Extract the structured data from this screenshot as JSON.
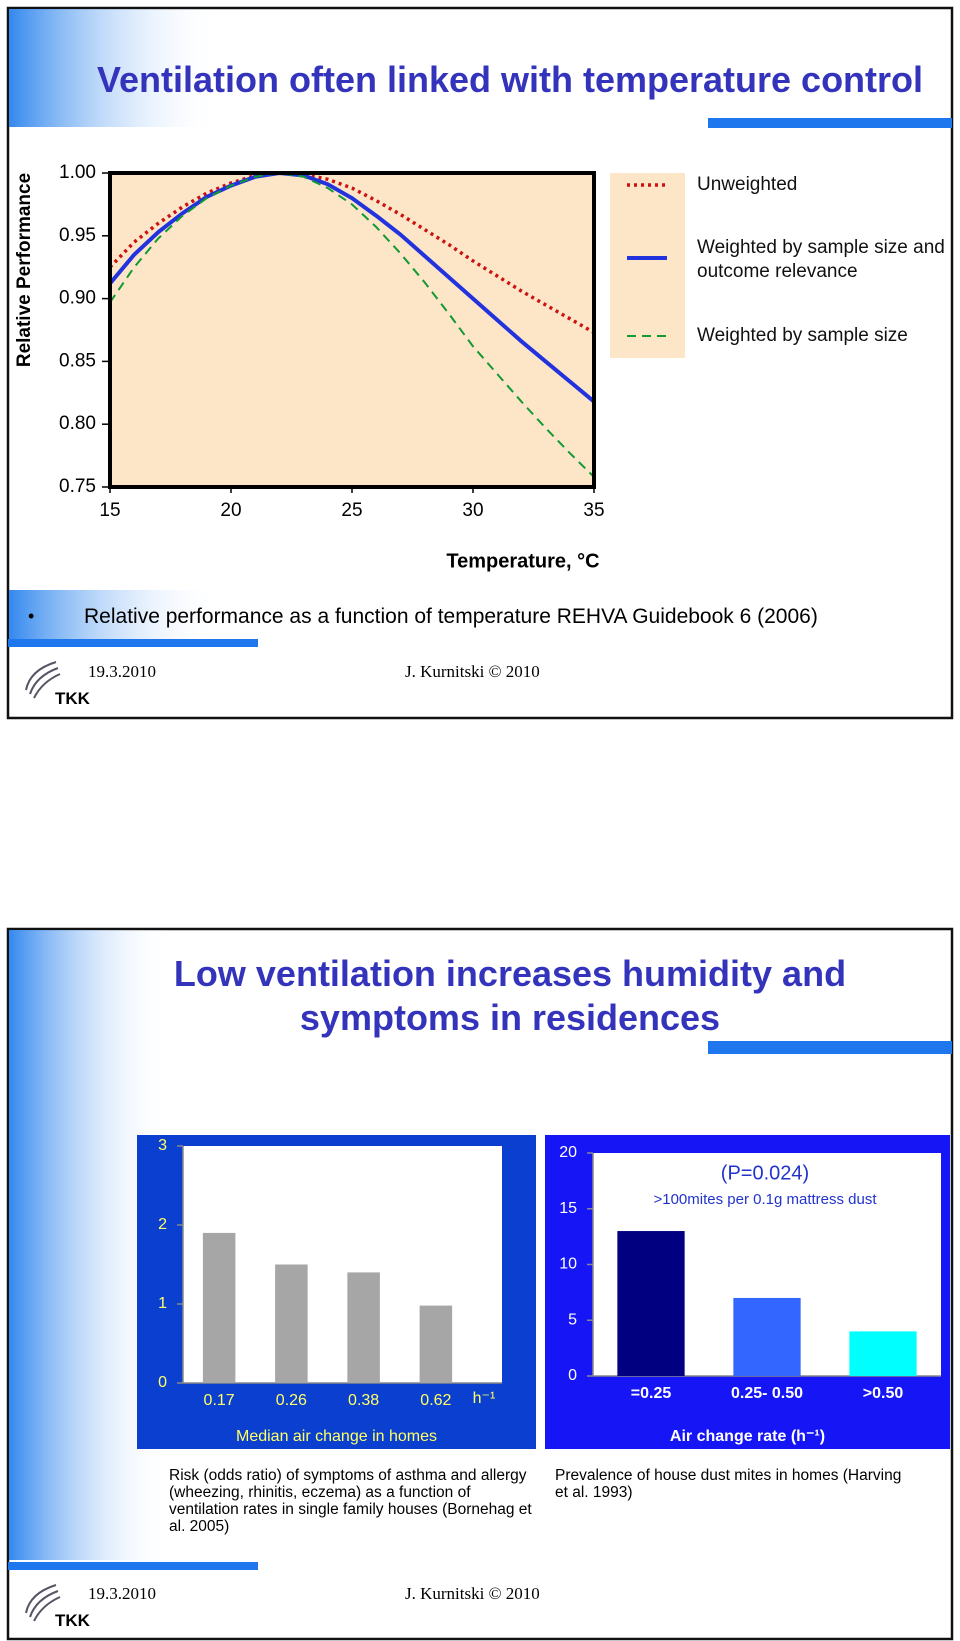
{
  "slides": [
    {
      "title": "Ventilation often linked with temperature control",
      "bullet": "Relative performance as a function of temperature REHVA Guidebook 6 (2006)",
      "footer": {
        "date": "19.3.2010",
        "author": "J. Kurnitski © 2010",
        "logo": "TKK"
      }
    },
    {
      "title": "Low ventilation increases humidity and symptoms in residences",
      "captions": [
        "Risk (odds ratio) of symptoms of asthma and allergy (wheezing, rhinitis, eczema) as a function of ventilation rates in single family houses (Bornehag et al. 2005)",
        "Prevalence of house dust mites in homes (Harving et al. 1993)"
      ],
      "footer": {
        "date": "19.3.2010",
        "author": "J. Kurnitski © 2010",
        "logo": "TKK"
      }
    }
  ],
  "chart_data": [
    {
      "type": "line",
      "x_label": "Temperature, °C",
      "y_label": "Relative Performance",
      "x": [
        15,
        16,
        17,
        18,
        19,
        20,
        21,
        22,
        23,
        24,
        25,
        26,
        27,
        28,
        29,
        30,
        31,
        32,
        33,
        34,
        35
      ],
      "xlim": [
        15,
        35
      ],
      "xticks": [
        15,
        20,
        25,
        30,
        35
      ],
      "ylim": [
        0.75,
        1
      ],
      "yticks": [
        0.75,
        {
          "value": 0.8,
          "label": "0.80"
        },
        0.85,
        {
          "value": 0.9,
          "label": "0.90"
        },
        0.95,
        {
          "value": 1,
          "label": "1.00"
        }
      ],
      "series": [
        {
          "name": "Unweighted",
          "color": "#cc1111",
          "style": "dotted",
          "values": [
            0.925,
            0.945,
            0.96,
            0.973,
            0.984,
            0.992,
            0.998,
            1.0,
            0.999,
            0.995,
            0.988,
            0.978,
            0.967,
            0.955,
            0.943,
            0.93,
            0.918,
            0.906,
            0.895,
            0.884,
            0.873
          ]
        },
        {
          "name": "Weighted by sample size and outcome relevance",
          "color": "#2233dd",
          "style": "solid",
          "values": [
            0.912,
            0.935,
            0.953,
            0.968,
            0.981,
            0.99,
            0.997,
            1.0,
            0.998,
            0.991,
            0.98,
            0.966,
            0.951,
            0.934,
            0.917,
            0.9,
            0.883,
            0.866,
            0.85,
            0.834,
            0.818
          ]
        },
        {
          "name": "Weighted by sample size",
          "color": "#119933",
          "style": "dashed",
          "values": [
            0.897,
            0.925,
            0.948,
            0.966,
            0.98,
            0.99,
            0.997,
            1.0,
            0.997,
            0.988,
            0.975,
            0.957,
            0.936,
            0.913,
            0.888,
            0.862,
            0.84,
            0.818,
            0.797,
            0.777,
            0.758
          ]
        }
      ]
    },
    {
      "type": "bar",
      "x_label": "Median air change in homes",
      "x_unit": "h⁻¹",
      "categories": [
        "0.17",
        "0.26",
        "0.38",
        "0.62"
      ],
      "values": [
        1.9,
        1.5,
        1.4,
        0.98
      ],
      "color": "#a6a6a6",
      "ylim": [
        0,
        3
      ],
      "yticks": [
        0,
        1,
        2,
        3
      ]
    },
    {
      "type": "bar",
      "x_label": "Air change rate (h⁻¹)",
      "annotations": [
        "(P=0.024)",
        ">100mites per 0.1g mattress dust"
      ],
      "categories": [
        "=0.25",
        "0.25- 0.50",
        ">0.50"
      ],
      "values": [
        13,
        7,
        4
      ],
      "colors": [
        "#000080",
        "#3366ff",
        "#00ffff"
      ],
      "ylim": [
        0,
        20
      ],
      "yticks": [
        0,
        5,
        10,
        15,
        20
      ]
    }
  ]
}
